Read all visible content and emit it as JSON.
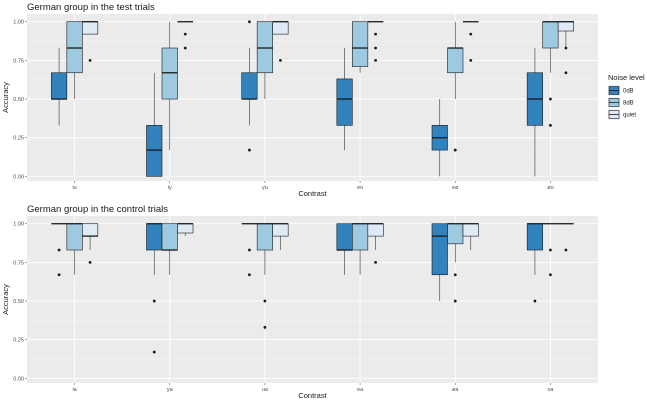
{
  "colors": {
    "panel_bg": "#ebebeb",
    "grid_major": "#ffffff",
    "grid_minor": "#f4f4f4",
    "outline": "#1a1a1a",
    "whisker": "#333333",
    "tick_text": "#4d4d4d",
    "point": "#1a1a1a"
  },
  "legend": {
    "title": "Noise level",
    "entries": [
      {
        "key": "0dB",
        "label": "0dB",
        "color": "#3182bd"
      },
      {
        "key": "8dB",
        "label": "8dB",
        "color": "#9ecae1"
      },
      {
        "key": "quiet",
        "label": "quiet",
        "color": "#deebf7"
      }
    ]
  },
  "chart_data": [
    {
      "type": "boxplot",
      "title": "German group in the test trials",
      "xlabel": "Contrast",
      "ylabel": "Accuracy",
      "ylim": [
        -0.03,
        1.05
      ],
      "yticks": [
        0.0,
        0.25,
        0.5,
        0.75,
        1.0
      ],
      "ytick_labels": [
        "0.00",
        "0.25",
        "0.50",
        "0.75",
        "1.00"
      ],
      "categories": [
        "iu",
        "iy",
        "yu",
        "eo",
        "eø",
        "øo"
      ],
      "series": [
        {
          "name": "0dB",
          "boxes": [
            {
              "whisker_low": 0.33,
              "q1": 0.5,
              "median": 0.5,
              "q3": 0.67,
              "whisker_high": 0.83,
              "outliers": []
            },
            {
              "whisker_low": 0.0,
              "q1": 0.0,
              "median": 0.17,
              "q3": 0.33,
              "whisker_high": 0.67,
              "outliers": []
            },
            {
              "whisker_low": 0.33,
              "q1": 0.5,
              "median": 0.5,
              "q3": 0.67,
              "whisker_high": 0.83,
              "outliers": [
                0.17,
                1.0
              ]
            },
            {
              "whisker_low": 0.17,
              "q1": 0.33,
              "median": 0.5,
              "q3": 0.63,
              "whisker_high": 0.83,
              "outliers": []
            },
            {
              "whisker_low": 0.0,
              "q1": 0.17,
              "median": 0.25,
              "q3": 0.33,
              "whisker_high": 0.5,
              "outliers": []
            },
            {
              "whisker_low": 0.0,
              "q1": 0.33,
              "median": 0.5,
              "q3": 0.67,
              "whisker_high": 0.83,
              "outliers": []
            }
          ]
        },
        {
          "name": "8dB",
          "boxes": [
            {
              "whisker_low": 0.5,
              "q1": 0.67,
              "median": 0.83,
              "q3": 1.0,
              "whisker_high": 1.0,
              "outliers": []
            },
            {
              "whisker_low": 0.17,
              "q1": 0.5,
              "median": 0.67,
              "q3": 0.83,
              "whisker_high": 1.0,
              "outliers": []
            },
            {
              "whisker_low": 0.5,
              "q1": 0.67,
              "median": 0.83,
              "q3": 1.0,
              "whisker_high": 1.0,
              "outliers": []
            },
            {
              "whisker_low": 0.67,
              "q1": 0.71,
              "median": 0.83,
              "q3": 1.0,
              "whisker_high": 1.0,
              "outliers": []
            },
            {
              "whisker_low": 0.5,
              "q1": 0.67,
              "median": 0.83,
              "q3": 0.83,
              "whisker_high": 1.0,
              "outliers": [
                0.17
              ]
            },
            {
              "whisker_low": 0.67,
              "q1": 0.83,
              "median": 1.0,
              "q3": 1.0,
              "whisker_high": 1.0,
              "outliers": [
                0.5,
                0.33
              ]
            }
          ]
        },
        {
          "name": "quiet",
          "boxes": [
            {
              "whisker_low": 0.92,
              "q1": 0.92,
              "median": 1.0,
              "q3": 1.0,
              "whisker_high": 1.0,
              "outliers": [
                0.75
              ]
            },
            {
              "whisker_low": 1.0,
              "q1": 1.0,
              "median": 1.0,
              "q3": 1.0,
              "whisker_high": 1.0,
              "outliers": [
                0.92,
                0.83
              ]
            },
            {
              "whisker_low": 0.92,
              "q1": 0.92,
              "median": 1.0,
              "q3": 1.0,
              "whisker_high": 1.0,
              "outliers": [
                0.75
              ]
            },
            {
              "whisker_low": 1.0,
              "q1": 1.0,
              "median": 1.0,
              "q3": 1.0,
              "whisker_high": 1.0,
              "outliers": [
                0.92,
                0.83,
                0.75
              ]
            },
            {
              "whisker_low": 1.0,
              "q1": 1.0,
              "median": 1.0,
              "q3": 1.0,
              "whisker_high": 1.0,
              "outliers": [
                0.92,
                0.75
              ]
            },
            {
              "whisker_low": 0.83,
              "q1": 0.94,
              "median": 1.0,
              "q3": 1.0,
              "whisker_high": 1.0,
              "outliers": [
                0.83,
                0.67
              ]
            }
          ]
        }
      ]
    },
    {
      "type": "boxplot",
      "title": "German group in the control trials",
      "xlabel": "Contrast",
      "ylabel": "Accuracy",
      "ylim": [
        -0.03,
        1.05
      ],
      "yticks": [
        0.0,
        0.25,
        0.5,
        0.75,
        1.0
      ],
      "ytick_labels": [
        "0.00",
        "0.25",
        "0.50",
        "0.75",
        "1.00"
      ],
      "categories": [
        "ia",
        "ya",
        "ua",
        "ea",
        "øa",
        "oa"
      ],
      "series": [
        {
          "name": "0dB",
          "boxes": [
            {
              "whisker_low": 1.0,
              "q1": 1.0,
              "median": 1.0,
              "q3": 1.0,
              "whisker_high": 1.0,
              "outliers": [
                0.83,
                0.67
              ]
            },
            {
              "whisker_low": 0.67,
              "q1": 0.83,
              "median": 1.0,
              "q3": 1.0,
              "whisker_high": 1.0,
              "outliers": [
                0.5,
                0.17
              ]
            },
            {
              "whisker_low": 1.0,
              "q1": 1.0,
              "median": 1.0,
              "q3": 1.0,
              "whisker_high": 1.0,
              "outliers": [
                0.83,
                0.67
              ]
            },
            {
              "whisker_low": 0.67,
              "q1": 0.83,
              "median": 0.83,
              "q3": 1.0,
              "whisker_high": 1.0,
              "outliers": []
            },
            {
              "whisker_low": 0.5,
              "q1": 0.67,
              "median": 0.92,
              "q3": 1.0,
              "whisker_high": 1.0,
              "outliers": []
            },
            {
              "whisker_low": 0.67,
              "q1": 0.83,
              "median": 1.0,
              "q3": 1.0,
              "whisker_high": 1.0,
              "outliers": [
                0.5
              ]
            }
          ]
        },
        {
          "name": "8dB",
          "boxes": [
            {
              "whisker_low": 0.67,
              "q1": 0.83,
              "median": 1.0,
              "q3": 1.0,
              "whisker_high": 1.0,
              "outliers": []
            },
            {
              "whisker_low": 0.67,
              "q1": 0.83,
              "median": 0.83,
              "q3": 1.0,
              "whisker_high": 1.0,
              "outliers": []
            },
            {
              "whisker_low": 0.67,
              "q1": 0.83,
              "median": 1.0,
              "q3": 1.0,
              "whisker_high": 1.0,
              "outliers": [
                0.5,
                0.33
              ]
            },
            {
              "whisker_low": 0.67,
              "q1": 0.83,
              "median": 1.0,
              "q3": 1.0,
              "whisker_high": 1.0,
              "outliers": []
            },
            {
              "whisker_low": 0.75,
              "q1": 0.87,
              "median": 1.0,
              "q3": 1.0,
              "whisker_high": 1.0,
              "outliers": [
                0.67,
                0.5
              ]
            },
            {
              "whisker_low": 1.0,
              "q1": 1.0,
              "median": 1.0,
              "q3": 1.0,
              "whisker_high": 1.0,
              "outliers": [
                0.83,
                0.67
              ]
            }
          ]
        },
        {
          "name": "quiet",
          "boxes": [
            {
              "whisker_low": 0.83,
              "q1": 0.92,
              "median": 0.92,
              "q3": 1.0,
              "whisker_high": 1.0,
              "outliers": [
                0.75
              ]
            },
            {
              "whisker_low": 0.92,
              "q1": 0.94,
              "median": 1.0,
              "q3": 1.0,
              "whisker_high": 1.0,
              "outliers": []
            },
            {
              "whisker_low": 0.83,
              "q1": 0.92,
              "median": 1.0,
              "q3": 1.0,
              "whisker_high": 1.0,
              "outliers": []
            },
            {
              "whisker_low": 0.83,
              "q1": 0.92,
              "median": 1.0,
              "q3": 1.0,
              "whisker_high": 1.0,
              "outliers": [
                0.75
              ]
            },
            {
              "whisker_low": 0.83,
              "q1": 0.92,
              "median": 1.0,
              "q3": 1.0,
              "whisker_high": 1.0,
              "outliers": []
            },
            {
              "whisker_low": 1.0,
              "q1": 1.0,
              "median": 1.0,
              "q3": 1.0,
              "whisker_high": 1.0,
              "outliers": [
                0.83
              ]
            }
          ]
        }
      ]
    }
  ]
}
